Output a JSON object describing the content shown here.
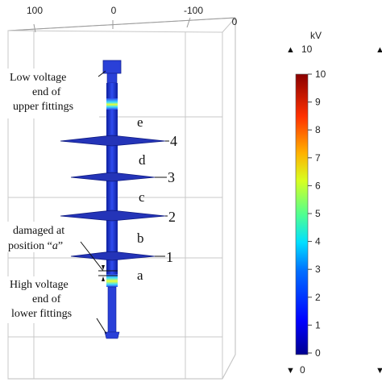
{
  "axis": {
    "tick_labels": [
      "100",
      "0",
      "-100",
      "0"
    ]
  },
  "annotations": {
    "low_voltage": [
      "Low voltage",
      "end of",
      "upper fittings"
    ],
    "damaged": [
      "damaged at",
      "position “",
      "a",
      "”"
    ],
    "high_voltage": [
      "High voltage",
      "end of",
      "lower fittings"
    ]
  },
  "sheds": {
    "numbers": [
      "4",
      "3",
      "2",
      "1"
    ],
    "letters": [
      "e",
      "d",
      "c",
      "b",
      "a"
    ]
  },
  "colorbar": {
    "unit": "kV",
    "max_label": "10",
    "min_label": "0",
    "ticks": [
      "10",
      "9",
      "8",
      "7",
      "6",
      "5",
      "4",
      "3",
      "2",
      "1",
      "0"
    ],
    "range": [
      0,
      10
    ],
    "colormap": "rainbow"
  },
  "colors": {
    "insulator_body": "#1c35d8",
    "shed_fill": "#2434b8",
    "frame_line": "#c8c8c8",
    "text": "#111111"
  }
}
